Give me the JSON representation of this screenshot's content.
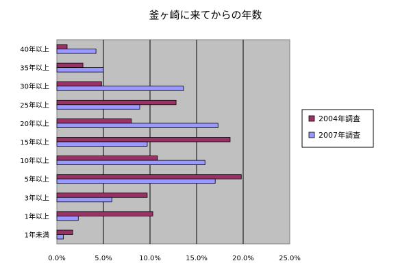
{
  "chart_data": {
    "type": "bar",
    "orientation": "horizontal",
    "title": "釜ヶ崎に来てからの年数",
    "xlabel": "",
    "ylabel": "",
    "xlim": [
      0,
      25
    ],
    "x_ticks": [
      "0.0%",
      "5.0%",
      "10.0%",
      "15.0%",
      "20.0%",
      "25.0%"
    ],
    "grid": "vertical",
    "legend_position": "right",
    "categories": [
      "40年以上",
      "35年以上",
      "30年以上",
      "25年以上",
      "20年以上",
      "15年以上",
      "10年以上",
      "5年以上",
      "3年以上",
      "1年以上",
      "1年未満"
    ],
    "series": [
      {
        "name": "2004年調査",
        "color": "#993366",
        "values": [
          1.1,
          2.8,
          4.8,
          12.8,
          8.0,
          18.6,
          10.8,
          19.8,
          9.7,
          10.3,
          1.7
        ]
      },
      {
        "name": "2007年調査",
        "color": "#9999ff",
        "values": [
          4.2,
          5.0,
          13.6,
          8.9,
          17.3,
          9.7,
          15.9,
          17.0,
          5.9,
          2.3,
          0.7
        ]
      }
    ],
    "plot_background": "#c0c0c0"
  }
}
